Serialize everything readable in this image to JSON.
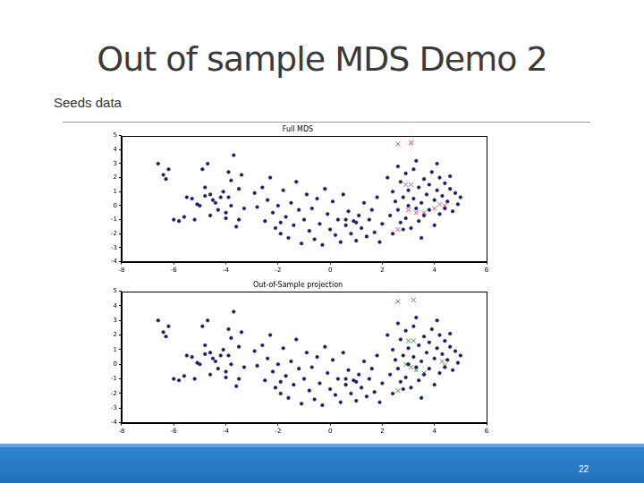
{
  "title": "Out of sample MDS Demo 2",
  "subtitle": "Seeds data",
  "page_number": 22,
  "chart_data": [
    {
      "type": "scatter",
      "title": "Full MDS",
      "xlim": [
        -8,
        6
      ],
      "xticks": [
        -8,
        -6,
        -4,
        -2,
        0,
        2,
        4,
        6
      ],
      "ylim": [
        -4,
        5
      ],
      "yticks": [
        -4,
        -3,
        -2,
        -1,
        0,
        1,
        2,
        3,
        4,
        5
      ],
      "grid": false,
      "series": [
        {
          "color": "#1c1c6e",
          "marker": "circle",
          "x": [
            -6.6,
            -6.4,
            -6.3,
            -6.2,
            -6.0,
            -5.8,
            -5.6,
            -5.5,
            -5.3,
            -5.2,
            -5.0,
            -4.9,
            -4.8,
            -4.7,
            -4.6,
            -4.5,
            -4.4,
            -4.3,
            -4.2,
            -4.1,
            -4.0,
            -4.0,
            -3.9,
            -3.8,
            -3.8,
            -3.7,
            -3.6,
            -3.5,
            -3.4,
            -3.3,
            -3.5,
            -4.6,
            -4.8,
            -5.1,
            -3.9,
            -2.9,
            -2.8,
            -2.6,
            -2.5,
            -2.4,
            -2.3,
            -2.2,
            -2.1,
            -2.0,
            -1.9,
            -1.8,
            -1.7,
            -1.6,
            -1.5,
            -1.4,
            -1.3,
            -1.2,
            -1.1,
            -1.0,
            -0.9,
            -0.8,
            -0.7,
            -0.6,
            -0.5,
            -0.4,
            -0.3,
            -0.2,
            -0.1,
            0.0,
            0.1,
            0.2,
            0.3,
            0.4,
            0.5,
            0.6,
            0.7,
            0.8,
            0.9,
            1.0,
            1.1,
            1.2,
            1.3,
            1.4,
            1.5,
            1.6,
            1.7,
            1.8,
            1.9,
            2.0,
            1.0,
            -1.9,
            0.6,
            2.2,
            2.3,
            2.4,
            2.4,
            2.5,
            2.6,
            2.6,
            2.7,
            2.7,
            2.8,
            2.9,
            2.9,
            3.0,
            3.0,
            3.1,
            3.2,
            3.2,
            3.3,
            3.4,
            3.4,
            3.5,
            3.6,
            3.6,
            3.7,
            3.8,
            3.8,
            3.9,
            4.0,
            4.0,
            4.1,
            4.2,
            4.2,
            4.3,
            4.4,
            4.4,
            4.5,
            4.6,
            4.7,
            4.8,
            4.9,
            5.0,
            4.6,
            3.3,
            4.1,
            2.8,
            3.5
          ],
          "y": [
            3.0,
            2.2,
            1.9,
            2.6,
            -1.0,
            -1.1,
            -0.8,
            0.6,
            0.5,
            -1.0,
            0.0,
            2.6,
            1.3,
            3.0,
            0.8,
            0.4,
            0.2,
            -0.3,
            0.6,
            1.0,
            -0.9,
            -0.5,
            2.4,
            1.8,
            0.0,
            3.6,
            -1.5,
            1.2,
            2.2,
            -0.2,
            -1.0,
            -0.7,
            0.7,
            0.1,
            0.6,
            0.9,
            -0.1,
            1.3,
            -1.1,
            0.4,
            2.0,
            -0.5,
            -1.6,
            0.0,
            -2.0,
            1.1,
            -0.8,
            -2.3,
            0.2,
            -1.4,
            1.7,
            -0.3,
            -2.7,
            -1.0,
            0.8,
            -1.8,
            -0.2,
            -2.4,
            0.5,
            -1.3,
            -2.8,
            1.2,
            -0.6,
            -1.7,
            0.3,
            -2.1,
            -1.0,
            -2.6,
            0.8,
            -1.4,
            -0.4,
            -2.0,
            -1.1,
            -2.5,
            -0.7,
            -1.6,
            0.2,
            -2.2,
            -1.0,
            -0.3,
            -1.9,
            0.6,
            -2.6,
            -1.3,
            -1.2,
            -1.2,
            -1.0,
            2.0,
            -0.7,
            1.0,
            -2.0,
            0.3,
            2.8,
            -0.3,
            1.7,
            -1.2,
            0.6,
            2.3,
            -0.9,
            0.0,
            1.1,
            -1.6,
            0.5,
            2.6,
            -0.2,
            1.3,
            -1.1,
            0.2,
            1.9,
            -0.7,
            0.8,
            -0.3,
            1.5,
            2.4,
            0.4,
            -1.4,
            1.1,
            -0.6,
            2.0,
            0.7,
            1.6,
            -0.2,
            0.3,
            1.2,
            -0.4,
            0.9,
            0.1,
            0.6,
            2.1,
            3.2,
            3.0,
            -1.7,
            -2.3
          ]
        },
        {
          "color": "#e0506a",
          "marker": "x",
          "x": [
            2.6,
            3.1,
            2.9,
            3.1,
            3.0,
            3.3,
            3.6,
            4.2,
            4.4,
            2.6,
            4.0
          ],
          "y": [
            4.4,
            4.5,
            1.5,
            1.5,
            -0.3,
            -0.5,
            -0.5,
            0.1,
            0.0,
            -1.7,
            -0.2
          ]
        }
      ]
    },
    {
      "type": "scatter",
      "title": "Out-of-Sample projection",
      "xlim": [
        -8,
        6
      ],
      "xticks": [
        -8,
        -6,
        -4,
        -2,
        0,
        2,
        4,
        6
      ],
      "ylim": [
        -4,
        5
      ],
      "yticks": [
        -4,
        -3,
        -2,
        -1,
        0,
        1,
        2,
        3,
        4,
        5
      ],
      "grid": false,
      "series": [
        {
          "color": "#1c1c6e",
          "marker": "circle",
          "x": [
            -6.6,
            -6.4,
            -6.3,
            -6.2,
            -6.0,
            -5.8,
            -5.6,
            -5.5,
            -5.3,
            -5.2,
            -5.0,
            -4.9,
            -4.8,
            -4.7,
            -4.6,
            -4.5,
            -4.4,
            -4.3,
            -4.2,
            -4.1,
            -4.0,
            -4.0,
            -3.9,
            -3.8,
            -3.8,
            -3.7,
            -3.6,
            -3.5,
            -3.4,
            -3.3,
            -3.5,
            -4.6,
            -4.8,
            -5.1,
            -3.9,
            -2.9,
            -2.8,
            -2.6,
            -2.5,
            -2.4,
            -2.3,
            -2.2,
            -2.1,
            -2.0,
            -1.9,
            -1.8,
            -1.7,
            -1.6,
            -1.5,
            -1.4,
            -1.3,
            -1.2,
            -1.1,
            -1.0,
            -0.9,
            -0.8,
            -0.7,
            -0.6,
            -0.5,
            -0.4,
            -0.3,
            -0.2,
            -0.1,
            0.0,
            0.1,
            0.2,
            0.3,
            0.4,
            0.5,
            0.6,
            0.7,
            0.8,
            0.9,
            1.0,
            1.1,
            1.2,
            1.3,
            1.4,
            1.5,
            1.6,
            1.7,
            1.8,
            1.9,
            2.0,
            1.0,
            -1.9,
            0.6,
            2.2,
            2.3,
            2.4,
            2.4,
            2.5,
            2.6,
            2.6,
            2.7,
            2.7,
            2.8,
            2.9,
            2.9,
            3.0,
            3.0,
            3.1,
            3.2,
            3.2,
            3.3,
            3.4,
            3.4,
            3.5,
            3.6,
            3.6,
            3.7,
            3.8,
            3.8,
            3.9,
            4.0,
            4.0,
            4.1,
            4.2,
            4.2,
            4.3,
            4.4,
            4.4,
            4.5,
            4.6,
            4.7,
            4.8,
            4.9,
            5.0,
            4.6,
            3.3,
            4.1,
            2.8,
            3.5
          ],
          "y": [
            3.0,
            2.2,
            1.9,
            2.6,
            -1.0,
            -1.1,
            -0.8,
            0.6,
            0.5,
            -1.0,
            0.0,
            2.6,
            1.3,
            3.0,
            0.8,
            0.4,
            0.2,
            -0.3,
            0.6,
            1.0,
            -0.9,
            -0.5,
            2.4,
            1.8,
            0.0,
            3.6,
            -1.5,
            1.2,
            2.2,
            -0.2,
            -1.0,
            -0.7,
            0.7,
            0.1,
            0.6,
            0.9,
            -0.1,
            1.3,
            -1.1,
            0.4,
            2.0,
            -0.5,
            -1.6,
            0.0,
            -2.0,
            1.1,
            -0.8,
            -2.3,
            0.2,
            -1.4,
            1.7,
            -0.3,
            -2.7,
            -1.0,
            0.8,
            -1.8,
            -0.2,
            -2.4,
            0.5,
            -1.3,
            -2.8,
            1.2,
            -0.6,
            -1.7,
            0.3,
            -2.1,
            -1.0,
            -2.6,
            0.8,
            -1.4,
            -0.4,
            -2.0,
            -1.1,
            -2.5,
            -0.7,
            -1.6,
            0.2,
            -2.2,
            -1.0,
            -0.3,
            -1.9,
            0.6,
            -2.6,
            -1.3,
            -1.2,
            -1.2,
            -1.0,
            2.0,
            -0.7,
            1.0,
            -2.0,
            0.3,
            2.8,
            -0.3,
            1.7,
            -1.2,
            0.6,
            2.3,
            -0.9,
            0.0,
            1.1,
            -1.6,
            0.5,
            2.6,
            -0.2,
            1.3,
            -1.1,
            0.2,
            1.9,
            -0.7,
            0.8,
            -0.3,
            1.5,
            2.4,
            0.4,
            -1.4,
            1.1,
            -0.6,
            2.0,
            0.7,
            1.6,
            -0.2,
            0.3,
            1.2,
            -0.4,
            0.9,
            0.1,
            0.6,
            2.1,
            3.2,
            3.0,
            -1.7,
            -2.3
          ]
        },
        {
          "color": "#3c9a3c",
          "marker": "x",
          "x": [
            2.6,
            3.2,
            3.0,
            3.2,
            2.9,
            3.3,
            3.6,
            4.3,
            4.4,
            2.6,
            3.1
          ],
          "y": [
            4.3,
            4.4,
            1.6,
            1.6,
            0.0,
            -0.4,
            -0.6,
            0.2,
            -0.1,
            -1.8,
            -0.2
          ]
        }
      ]
    }
  ]
}
